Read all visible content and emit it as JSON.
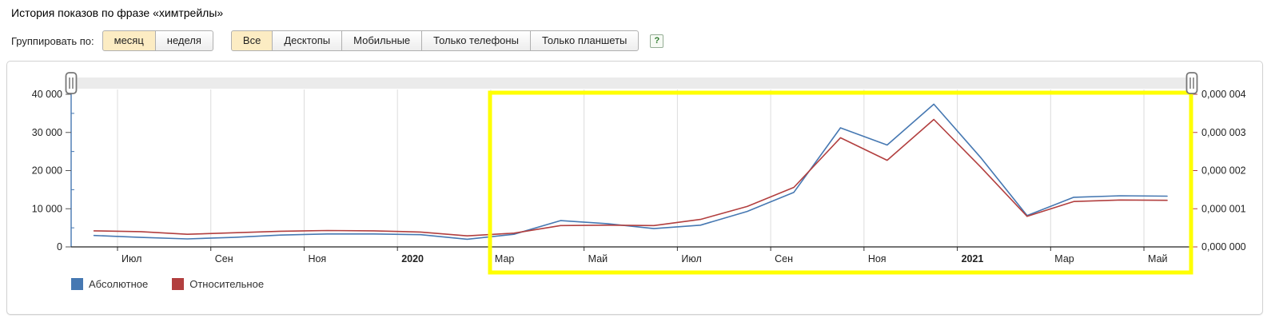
{
  "title": "История показов по фразе «химтрейлы»",
  "controls": {
    "group_by_label": "Группировать по:",
    "grouping_buttons": [
      {
        "label": "месяц",
        "selected": true
      },
      {
        "label": "неделя",
        "selected": false
      }
    ],
    "device_buttons": [
      {
        "label": "Все",
        "selected": true
      },
      {
        "label": "Десктопы",
        "selected": false
      },
      {
        "label": "Мобильные",
        "selected": false
      },
      {
        "label": "Только телефоны",
        "selected": false
      },
      {
        "label": "Только планшеты",
        "selected": false
      }
    ],
    "help_icon": "?"
  },
  "legend": [
    {
      "label": "Абсолютное",
      "color": "#4678b2"
    },
    {
      "label": "Относительное",
      "color": "#b23f3f"
    }
  ],
  "chart_data": {
    "type": "line",
    "title": "История показов по фразе «химтрейлы»",
    "x_months": [
      "Июн 2019",
      "Июл 2019",
      "Авг 2019",
      "Сен 2019",
      "Окт 2019",
      "Ноя 2019",
      "Дек 2019",
      "Янв 2020",
      "Фев 2020",
      "Мар 2020",
      "Апр 2020",
      "Май 2020",
      "Июн 2020",
      "Июл 2020",
      "Авг 2020",
      "Сен 2020",
      "Окт 2020",
      "Ноя 2020",
      "Дек 2020",
      "Янв 2021",
      "Фев 2021",
      "Мар 2021",
      "Апр 2021",
      "Май 2021"
    ],
    "series": [
      {
        "name": "Абсолютное",
        "axis": "left",
        "color": "#4678b2",
        "values": [
          3000,
          2500,
          2100,
          2500,
          3100,
          3400,
          3400,
          3200,
          2000,
          3300,
          6900,
          6100,
          4800,
          5700,
          9300,
          14300,
          31200,
          26700,
          37400,
          23500,
          8200,
          13000,
          13400,
          13300
        ]
      },
      {
        "name": "Относительное",
        "axis": "right",
        "color": "#b23f3f",
        "values": [
          4.2e-07,
          4e-07,
          3.3e-07,
          3.7e-07,
          4.1e-07,
          4.3e-07,
          4.2e-07,
          3.9e-07,
          2.9e-07,
          3.6e-07,
          5.6e-07,
          5.7e-07,
          5.6e-07,
          7.2e-07,
          1.06e-06,
          1.56e-06,
          2.86e-06,
          2.27e-06,
          3.34e-06,
          2.1e-06,
          8e-07,
          1.19e-06,
          1.23e-06,
          1.22e-06
        ]
      }
    ],
    "left_axis": {
      "max": 40000,
      "ticks": [
        {
          "label": "40 000",
          "value": 40000
        },
        {
          "label": "30 000",
          "value": 30000
        },
        {
          "label": "20 000",
          "value": 20000
        },
        {
          "label": "10 000",
          "value": 10000
        },
        {
          "label": "0",
          "value": 0
        }
      ]
    },
    "right_axis": {
      "max": 4e-06,
      "ticks": [
        {
          "label": "0,000 004",
          "value": 4e-06
        },
        {
          "label": "0,000 003",
          "value": 3e-06
        },
        {
          "label": "0,000 002",
          "value": 2e-06
        },
        {
          "label": "0,000 001",
          "value": 1e-06
        },
        {
          "label": "0,000 000",
          "value": 0
        }
      ]
    },
    "x_axis": {
      "ticks": [
        {
          "label": "Июл",
          "bold": false
        },
        {
          "label": "Сен",
          "bold": false
        },
        {
          "label": "Ноя",
          "bold": false
        },
        {
          "label": "2020",
          "bold": true
        },
        {
          "label": "Мар",
          "bold": false
        },
        {
          "label": "Май",
          "bold": false
        },
        {
          "label": "Июл",
          "bold": false
        },
        {
          "label": "Сен",
          "bold": false
        },
        {
          "label": "Ноя",
          "bold": false
        },
        {
          "label": "2021",
          "bold": true
        },
        {
          "label": "Мар",
          "bold": false
        },
        {
          "label": "Май",
          "bold": false
        }
      ]
    },
    "highlight": {
      "color": "#ffff00",
      "from": "Мар 2020",
      "to": "Май 2021"
    },
    "legend_position": "bottom-left",
    "grid": "vertical-only"
  }
}
